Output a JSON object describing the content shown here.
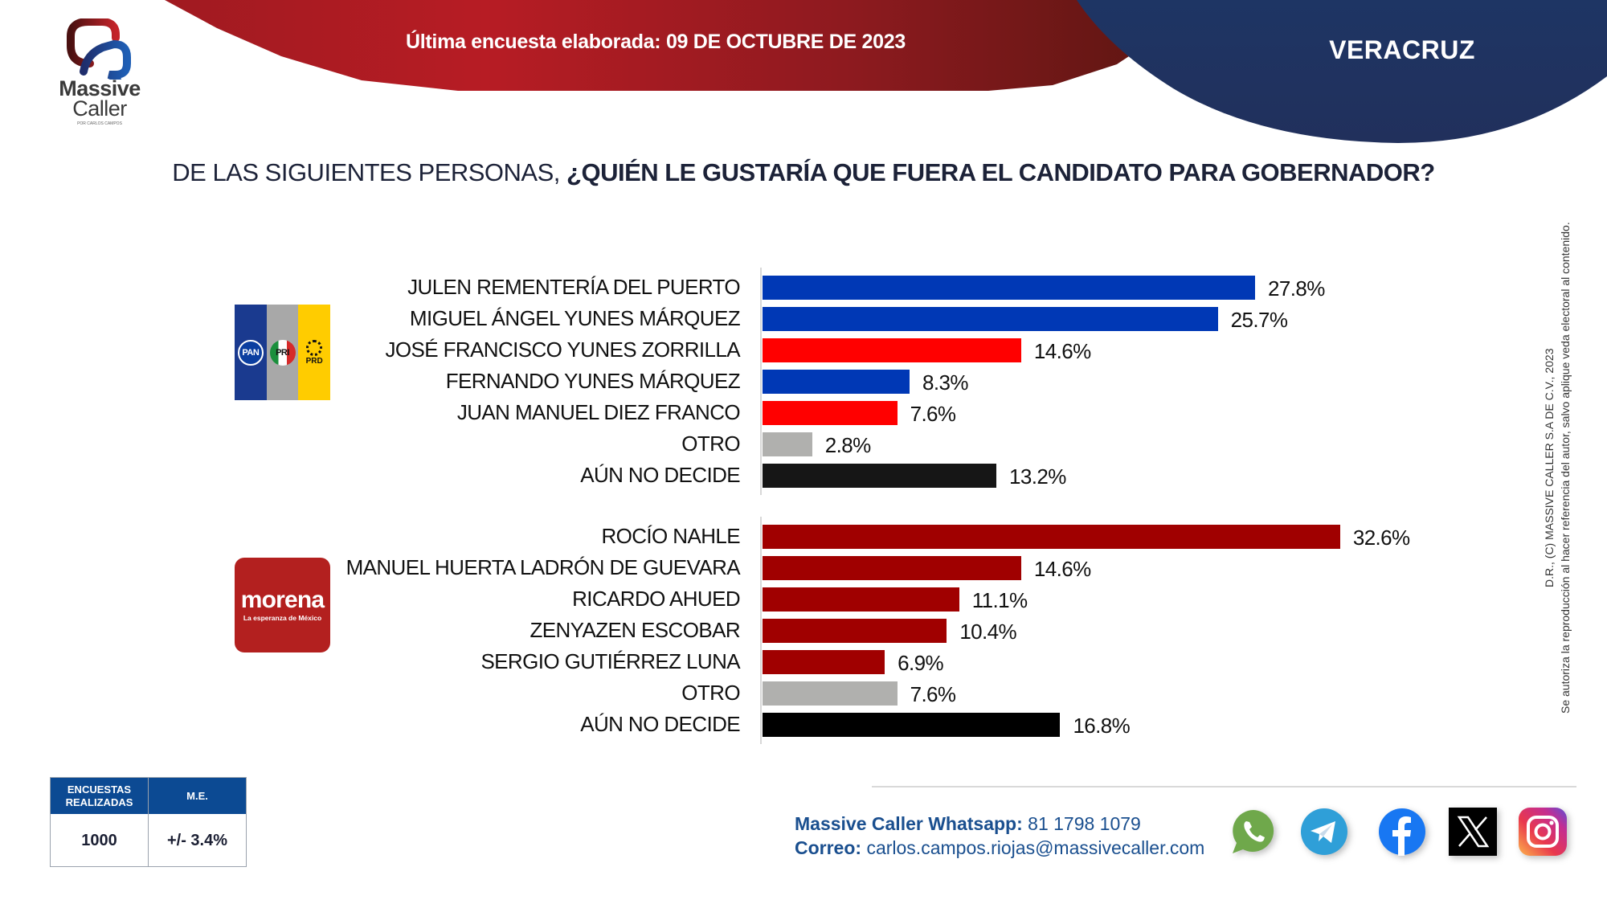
{
  "header": {
    "survey_date_label": "Última encuesta elaborada: 09 DE OCTUBRE DE 2023",
    "state": "VERACRUZ"
  },
  "logo": {
    "word1": "Massive",
    "word2": "Caller",
    "tagline": "POR CARLOS CAMPOS"
  },
  "question": {
    "prefix": "DE LAS SIGUIENTES PERSONAS, ",
    "emphasis": "¿QUIÉN LE GUSTARÍA QUE FUERA EL CANDIDATO PARA GOBERNADOR?"
  },
  "party_logos": {
    "coalition": {
      "pan": "PAN",
      "pri": "PRI",
      "prd": "PRD"
    },
    "morena": {
      "name": "morena",
      "tagline": "La esperanza de México"
    }
  },
  "colors": {
    "pan_blue": "#0038b5",
    "pri_red": "#ff0000",
    "morena_red": "#a00000",
    "other_gray": "#b0b0ae",
    "undecided_black": "#111111",
    "brand_blue": "#0c4a93"
  },
  "chart_data": {
    "type": "bar",
    "orientation": "horizontal",
    "title": "DE LAS SIGUIENTES PERSONAS, ¿QUIÉN LE GUSTARÍA QUE FUERA EL CANDIDATO PARA GOBERNADOR?",
    "unit": "%",
    "xlim": [
      0,
      35
    ],
    "grid": false,
    "groups": [
      {
        "name": "PAN-PRI-PRD",
        "categories": [
          "JULEN REMENTERÍA DEL PUERTO",
          "MIGUEL ÁNGEL YUNES MÁRQUEZ",
          "JOSÉ FRANCISCO YUNES ZORRILLA",
          "FERNANDO YUNES MÁRQUEZ",
          "JUAN MANUEL DIEZ FRANCO",
          "OTRO",
          "AÚN NO DECIDE"
        ],
        "values": [
          27.8,
          25.7,
          14.6,
          8.3,
          7.6,
          2.8,
          13.2
        ],
        "labels": [
          "27.8%",
          "25.7%",
          "14.6%",
          "8.3%",
          "7.6%",
          "2.8%",
          "13.2%"
        ],
        "colors": [
          "#0038b5",
          "#0038b5",
          "#ff0000",
          "#0038b5",
          "#ff0000",
          "#b0b0ae",
          "#161616"
        ]
      },
      {
        "name": "MORENA",
        "categories": [
          "ROCÍO NAHLE",
          "MANUEL HUERTA LADRÓN DE GUEVARA",
          "RICARDO AHUED",
          "ZENYAZEN ESCOBAR",
          "SERGIO GUTIÉRREZ LUNA",
          "OTRO",
          "AÚN NO DECIDE"
        ],
        "values": [
          32.6,
          14.6,
          11.1,
          10.4,
          6.9,
          7.6,
          16.8
        ],
        "labels": [
          "32.6%",
          "14.6%",
          "11.1%",
          "10.4%",
          "6.9%",
          "7.6%",
          "16.8%"
        ],
        "colors": [
          "#a00000",
          "#a00000",
          "#a00000",
          "#a00000",
          "#a00000",
          "#b0b0ae",
          "#000000"
        ]
      }
    ]
  },
  "stats_table": {
    "headers": [
      "ENCUESTAS REALIZADAS",
      "M.E."
    ],
    "values": [
      "1000",
      "+/- 3.4%"
    ]
  },
  "contact": {
    "whatsapp_label": "Massive Caller Whatsapp:",
    "whatsapp_number": "81 1798 1079",
    "email_label": "Correo:",
    "email": "carlos.campos.riojas@massivecaller.com"
  },
  "social_icons": [
    "whatsapp-icon",
    "telegram-icon",
    "facebook-icon",
    "x-icon",
    "instagram-icon"
  ],
  "copyright": {
    "line1": "D.R., (C) MASSIVE CALLER S.A DE C.V., 2023",
    "line2": "Se autoriza la reproducción al hacer referencia del autor, salvo aplique veda electoral al contenido."
  }
}
